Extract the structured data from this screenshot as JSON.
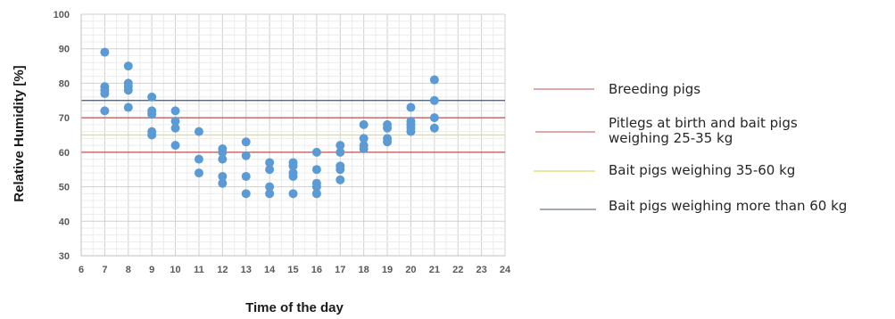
{
  "chart_data": {
    "type": "scatter",
    "title": "",
    "xlabel": "Time of the day",
    "ylabel": "Relative Humidity [%]",
    "xlim": [
      6,
      24
    ],
    "ylim": [
      30,
      100
    ],
    "x_ticks": [
      6,
      7,
      8,
      9,
      10,
      11,
      12,
      13,
      14,
      15,
      16,
      17,
      18,
      19,
      20,
      21,
      22,
      23,
      24
    ],
    "y_ticks": [
      30,
      40,
      50,
      60,
      70,
      80,
      90,
      100
    ],
    "grid": "on (major and minor)",
    "point_color": "#5b9bd5",
    "points": [
      [
        7,
        89
      ],
      [
        7,
        79
      ],
      [
        7,
        78
      ],
      [
        7,
        77
      ],
      [
        7,
        72
      ],
      [
        8,
        85
      ],
      [
        8,
        80
      ],
      [
        8,
        79
      ],
      [
        8,
        78
      ],
      [
        8,
        73
      ],
      [
        9,
        76
      ],
      [
        9,
        72
      ],
      [
        9,
        71
      ],
      [
        9,
        66
      ],
      [
        9,
        65
      ],
      [
        10,
        72
      ],
      [
        10,
        69
      ],
      [
        10,
        67
      ],
      [
        10,
        62
      ],
      [
        11,
        66
      ],
      [
        11,
        58
      ],
      [
        11,
        54
      ],
      [
        12,
        61
      ],
      [
        12,
        60
      ],
      [
        12,
        58
      ],
      [
        12,
        53
      ],
      [
        12,
        51
      ],
      [
        13,
        63
      ],
      [
        13,
        59
      ],
      [
        13,
        53
      ],
      [
        13,
        48
      ],
      [
        14,
        57
      ],
      [
        14,
        55
      ],
      [
        14,
        50
      ],
      [
        14,
        48
      ],
      [
        15,
        57
      ],
      [
        15,
        56
      ],
      [
        15,
        54
      ],
      [
        15,
        53
      ],
      [
        15,
        48
      ],
      [
        16,
        60
      ],
      [
        16,
        55
      ],
      [
        16,
        51
      ],
      [
        16,
        50
      ],
      [
        16,
        48
      ],
      [
        17,
        62
      ],
      [
        17,
        60
      ],
      [
        17,
        56
      ],
      [
        17,
        55
      ],
      [
        17,
        52
      ],
      [
        18,
        68
      ],
      [
        18,
        64
      ],
      [
        18,
        62
      ],
      [
        18,
        61
      ],
      [
        19,
        68
      ],
      [
        19,
        67
      ],
      [
        19,
        64
      ],
      [
        19,
        63
      ],
      [
        20,
        73
      ],
      [
        20,
        69
      ],
      [
        20,
        68
      ],
      [
        20,
        67
      ],
      [
        20,
        66
      ],
      [
        21,
        81
      ],
      [
        21,
        75
      ],
      [
        21,
        70
      ],
      [
        21,
        67
      ]
    ],
    "reference_lines": [
      {
        "name": "Breeding pigs",
        "y": 60,
        "color": "#c0504d"
      },
      {
        "name": "Pitlegs at birth and bait pigs weighing 25-35 kg",
        "y": 70,
        "color": "#c0504d"
      },
      {
        "name": "Bait pigs weighing 35-60 kg",
        "y": 65,
        "color": "#dde07a"
      },
      {
        "name": "Bait pigs weighing more than 60 kg",
        "y": 75,
        "color": "#44546a"
      }
    ],
    "legend_position": "right"
  }
}
